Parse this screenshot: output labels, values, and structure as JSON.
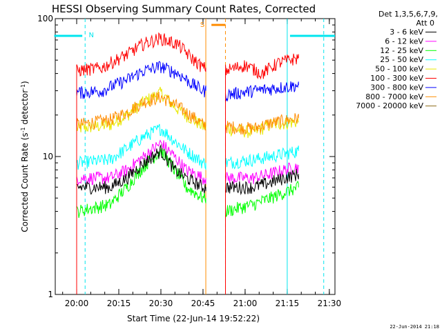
{
  "chart_data": {
    "type": "line",
    "title": "HESSI Observing Summary Count Rates, Corrected",
    "xlabel": "Start Time (22-Jun-14 19:52:22)",
    "ylabel_parts": [
      "Corrected Count Rate (s",
      "-1",
      " detector",
      "-1",
      ")"
    ],
    "y_scale": "log",
    "ylim": [
      1,
      100
    ],
    "xlim": [
      "19:52:22",
      "21:32:00"
    ],
    "x_ticks": [
      "20:00",
      "20:15",
      "20:30",
      "20:45",
      "21:00",
      "21:15",
      "21:30"
    ],
    "y_ticks": [
      "1",
      "10",
      "100"
    ],
    "legend_header": [
      "Det 1,3,5,6,7,9,",
      "Att 0"
    ],
    "timestamp": "22-Jun-2014 21:18",
    "data_gap": [
      "20:46",
      "20:53"
    ],
    "series": [
      {
        "name": "3 - 6 keV",
        "color": "#000000",
        "start": "20:00",
        "end": "21:19",
        "pre": [
          [
            20.0,
            6.0
          ],
          [
            20.2,
            6.0
          ],
          [
            20.3,
            7.0
          ],
          [
            20.4,
            9.0
          ],
          [
            20.5,
            11.0
          ],
          [
            20.58,
            8.0
          ],
          [
            20.65,
            7.0
          ],
          [
            20.75,
            6.0
          ]
        ],
        "post": [
          [
            20.88,
            6.0
          ],
          [
            21.05,
            6.0
          ],
          [
            21.15,
            6.5
          ],
          [
            21.32,
            7.5
          ]
        ]
      },
      {
        "name": "6 - 12 keV",
        "color": "#ff00ff",
        "start": "20:00",
        "end": "21:19",
        "pre": [
          [
            20.0,
            7.0
          ],
          [
            20.2,
            7.0
          ],
          [
            20.3,
            8.0
          ],
          [
            20.4,
            10.0
          ],
          [
            20.5,
            12.5
          ],
          [
            20.58,
            10.0
          ],
          [
            20.65,
            8.0
          ],
          [
            20.75,
            7.0
          ]
        ],
        "post": [
          [
            20.88,
            7.0
          ],
          [
            21.05,
            7.0
          ],
          [
            21.15,
            7.5
          ],
          [
            21.32,
            8.5
          ]
        ]
      },
      {
        "name": "12 - 25 keV",
        "color": "#00ff00",
        "start": "20:00",
        "end": "21:19",
        "pre": [
          [
            20.0,
            4.0
          ],
          [
            20.2,
            4.5
          ],
          [
            20.3,
            6.0
          ],
          [
            20.4,
            8.5
          ],
          [
            20.5,
            11.0
          ],
          [
            20.58,
            8.0
          ],
          [
            20.65,
            6.0
          ],
          [
            20.75,
            5.0
          ]
        ],
        "post": [
          [
            20.88,
            4.0
          ],
          [
            21.05,
            4.5
          ],
          [
            21.15,
            5.0
          ],
          [
            21.32,
            6.0
          ]
        ]
      },
      {
        "name": "25 - 50 keV",
        "color": "#00ffff",
        "start": "20:00",
        "end": "21:19",
        "pre": [
          [
            20.0,
            9.0
          ],
          [
            20.2,
            9.5
          ],
          [
            20.3,
            11.5
          ],
          [
            20.4,
            14.0
          ],
          [
            20.5,
            16.0
          ],
          [
            20.58,
            13.0
          ],
          [
            20.65,
            11.0
          ],
          [
            20.75,
            9.0
          ]
        ],
        "post": [
          [
            20.88,
            9.0
          ],
          [
            21.05,
            9.5
          ],
          [
            21.15,
            10.0
          ],
          [
            21.32,
            11.0
          ]
        ]
      },
      {
        "name": "50 - 100 keV",
        "color": "#e8e800",
        "start": "20:00",
        "end": "21:19",
        "pre": [
          [
            20.0,
            16.0
          ],
          [
            20.2,
            17.0
          ],
          [
            20.3,
            20.0
          ],
          [
            20.4,
            25.0
          ],
          [
            20.5,
            29.0
          ],
          [
            20.58,
            23.0
          ],
          [
            20.65,
            20.0
          ],
          [
            20.75,
            16.5
          ]
        ],
        "post": [
          [
            20.88,
            16.0
          ],
          [
            21.05,
            15.0
          ],
          [
            21.15,
            17.0
          ],
          [
            21.32,
            18.0
          ]
        ]
      },
      {
        "name": "100 - 300 keV",
        "color": "#ff0000",
        "start": "20:00",
        "end": "21:19",
        "pre": [
          [
            20.0,
            42.0
          ],
          [
            20.15,
            44.0
          ],
          [
            20.3,
            55.0
          ],
          [
            20.4,
            66.0
          ],
          [
            20.5,
            72.0
          ],
          [
            20.6,
            65.0
          ],
          [
            20.68,
            52.0
          ],
          [
            20.75,
            44.0
          ]
        ],
        "post": [
          [
            20.88,
            42.0
          ],
          [
            21.0,
            46.0
          ],
          [
            21.1,
            40.0
          ],
          [
            21.2,
            48.0
          ],
          [
            21.32,
            52.0
          ]
        ]
      },
      {
        "name": "300 - 800 keV",
        "color": "#0000ff",
        "start": "20:00",
        "end": "21:19",
        "pre": [
          [
            20.0,
            29.0
          ],
          [
            20.15,
            30.0
          ],
          [
            20.3,
            36.0
          ],
          [
            20.4,
            42.0
          ],
          [
            20.5,
            45.0
          ],
          [
            20.6,
            40.0
          ],
          [
            20.68,
            34.0
          ],
          [
            20.75,
            30.0
          ]
        ],
        "post": [
          [
            20.88,
            28.0
          ],
          [
            21.05,
            30.0
          ],
          [
            21.15,
            31.0
          ],
          [
            21.32,
            33.0
          ]
        ]
      },
      {
        "name": "800 - 7000 keV",
        "color": "#ff8c00",
        "start": "20:00",
        "end": "21:19",
        "pre": [
          [
            20.0,
            17.0
          ],
          [
            20.2,
            18.5
          ],
          [
            20.3,
            21.0
          ],
          [
            20.4,
            25.0
          ],
          [
            20.5,
            27.0
          ],
          [
            20.58,
            24.0
          ],
          [
            20.65,
            21.0
          ],
          [
            20.75,
            17.0
          ]
        ],
        "post": [
          [
            20.88,
            16.5
          ],
          [
            21.05,
            16.0
          ],
          [
            21.15,
            17.5
          ],
          [
            21.32,
            19.0
          ]
        ]
      },
      {
        "name": "7000 - 20000 keV",
        "color": "#8b6914",
        "start": "20:00",
        "end": "21:19",
        "pre": [],
        "post": []
      }
    ],
    "markers": [
      {
        "label": "N",
        "color": "#00e5ee",
        "solid_at": "21:15",
        "dashed_at": [
          "20:03",
          "21:28"
        ],
        "bars": [
          [
            "19:52",
            "20:02"
          ],
          [
            "21:16",
            "21:32"
          ]
        ],
        "bar_value": 75
      },
      {
        "label": "S",
        "color": "#ff8c00",
        "solid_at": "20:46",
        "dashed_at": [
          "20:53"
        ],
        "bars": [
          [
            "20:48",
            "20:53"
          ]
        ],
        "bar_value": 90
      }
    ]
  }
}
